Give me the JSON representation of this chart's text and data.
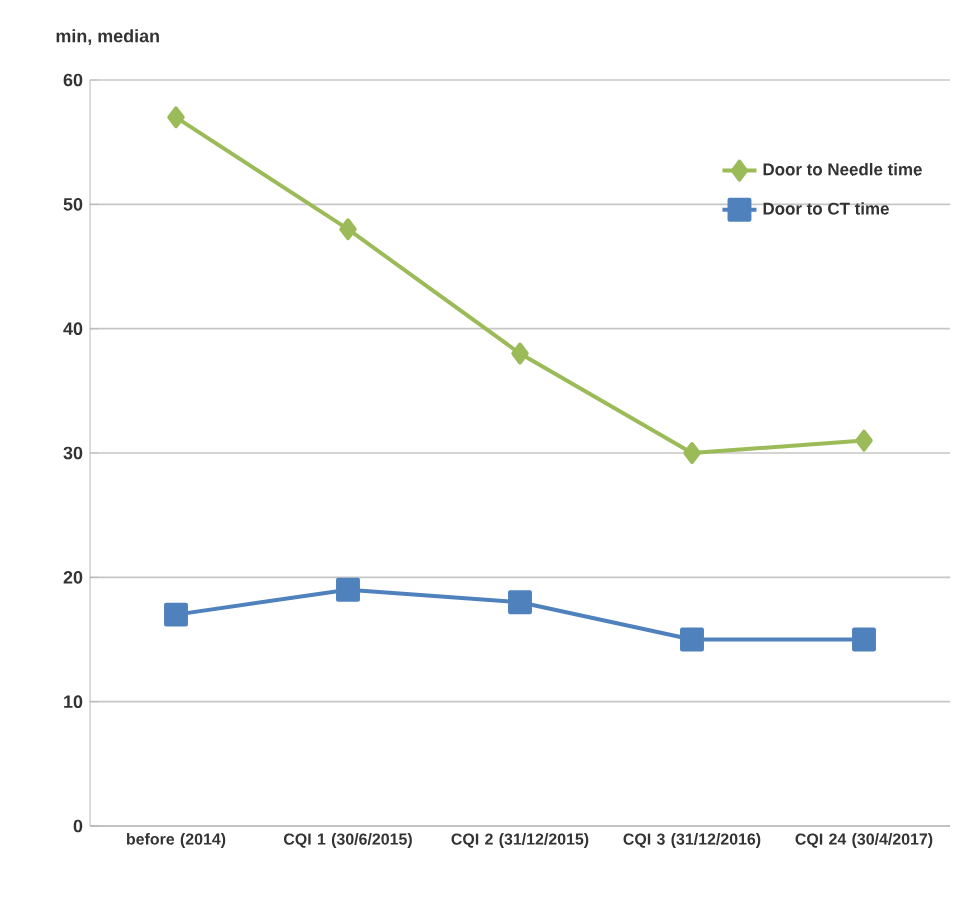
{
  "chart_data": {
    "type": "line",
    "ylabel": "min, median",
    "categories": [
      "before (2014)",
      "CQI 1 (30/6/2015)",
      "CQI 2 (31/12/2015)",
      "CQI 3 (31/12/2016)",
      "CQI 24 (30/4/2017)"
    ],
    "series": [
      {
        "name": "Door to Needle time",
        "color": "#9bbb59",
        "marker": "diamond",
        "values": [
          57,
          48,
          38,
          30,
          31
        ]
      },
      {
        "name": "Door to CT time",
        "color": "#4f81bd",
        "marker": "square",
        "values": [
          17,
          19,
          18,
          15,
          15
        ]
      }
    ],
    "ylim": [
      0,
      60
    ],
    "yticks": [
      0,
      10,
      20,
      30,
      40,
      50,
      60
    ],
    "grid": "y",
    "legend": "top right"
  }
}
